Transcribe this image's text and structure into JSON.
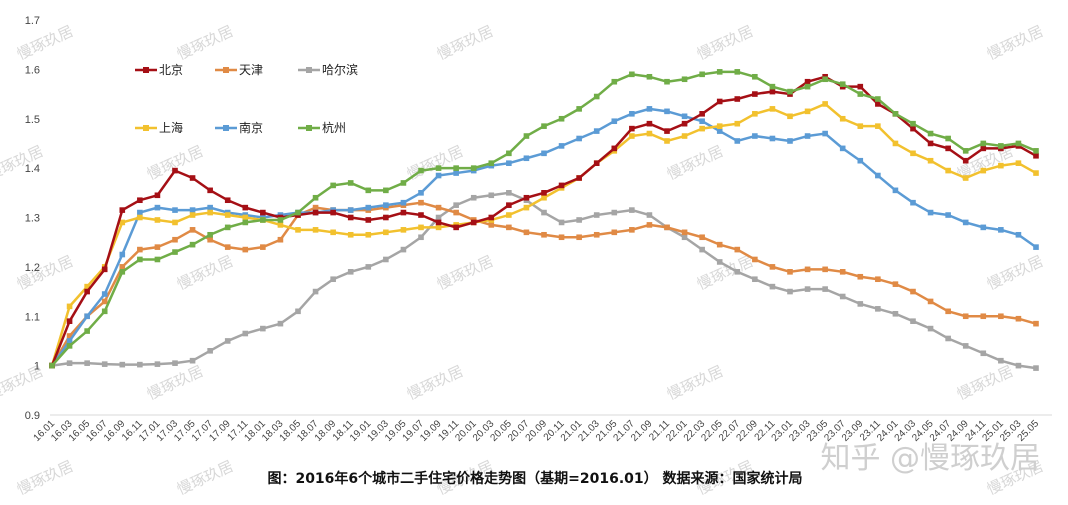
{
  "chart_data": {
    "type": "line",
    "title": "",
    "caption": "图：2016年6个城市二手住宅价格走势图（基期=2016.01） 数据来源：国家统计局",
    "xlabel": "",
    "ylabel": "",
    "ylim": [
      0.9,
      1.7
    ],
    "yticks": [
      "1.7",
      "1.6",
      "1.5",
      "1.4",
      "1.3",
      "1.2",
      "1.1",
      "1",
      "0.9"
    ],
    "grid": false,
    "legend_position": "top-left",
    "x": [
      "16.01",
      "16.03",
      "16.05",
      "16.07",
      "16.09",
      "16.11",
      "17.01",
      "17.03",
      "17.05",
      "17.07",
      "17.09",
      "17.11",
      "18.01",
      "18.03",
      "18.05",
      "18.07",
      "18.09",
      "18.11",
      "19.01",
      "19.03",
      "19.05",
      "19.07",
      "19.09",
      "19.11",
      "20.01",
      "20.03",
      "20.05",
      "20.07",
      "20.09",
      "20.11",
      "21.01",
      "21.03",
      "21.05",
      "21.07",
      "21.09",
      "21.11",
      "22.01",
      "22.03",
      "22.05",
      "22.07",
      "22.09",
      "22.11",
      "23.01",
      "23.03",
      "23.05",
      "23.07",
      "23.09",
      "23.11",
      "24.01",
      "24.03",
      "24.05",
      "24.07",
      "24.09",
      "24.11",
      "25.01",
      "25.03",
      "25.05"
    ],
    "series": [
      {
        "name": "北京",
        "color": "#a50f15",
        "values": [
          1.0,
          1.09,
          1.15,
          1.195,
          1.315,
          1.335,
          1.345,
          1.395,
          1.38,
          1.355,
          1.335,
          1.32,
          1.31,
          1.3,
          1.305,
          1.31,
          1.31,
          1.3,
          1.295,
          1.3,
          1.31,
          1.305,
          1.29,
          1.28,
          1.29,
          1.3,
          1.325,
          1.34,
          1.35,
          1.365,
          1.38,
          1.41,
          1.44,
          1.48,
          1.49,
          1.475,
          1.49,
          1.51,
          1.535,
          1.54,
          1.55,
          1.555,
          1.55,
          1.575,
          1.585,
          1.565,
          1.565,
          1.53,
          1.51,
          1.48,
          1.45,
          1.44,
          1.415,
          1.44,
          1.44,
          1.445,
          1.425
        ]
      },
      {
        "name": "天津",
        "color": "#e08a45",
        "values": [
          1.0,
          1.06,
          1.1,
          1.13,
          1.2,
          1.235,
          1.24,
          1.255,
          1.275,
          1.255,
          1.24,
          1.235,
          1.24,
          1.255,
          1.305,
          1.32,
          1.315,
          1.315,
          1.315,
          1.32,
          1.325,
          1.33,
          1.32,
          1.31,
          1.295,
          1.285,
          1.28,
          1.27,
          1.265,
          1.26,
          1.26,
          1.265,
          1.27,
          1.275,
          1.285,
          1.28,
          1.27,
          1.26,
          1.245,
          1.235,
          1.215,
          1.2,
          1.19,
          1.195,
          1.195,
          1.19,
          1.18,
          1.175,
          1.165,
          1.15,
          1.13,
          1.11,
          1.1,
          1.1,
          1.1,
          1.095,
          1.085
        ]
      },
      {
        "name": "哈尔滨",
        "color": "#a5a5a5",
        "values": [
          1.0,
          1.005,
          1.005,
          1.003,
          1.002,
          1.002,
          1.003,
          1.005,
          1.01,
          1.03,
          1.05,
          1.065,
          1.075,
          1.085,
          1.11,
          1.15,
          1.175,
          1.19,
          1.2,
          1.215,
          1.235,
          1.26,
          1.3,
          1.325,
          1.34,
          1.345,
          1.35,
          1.335,
          1.31,
          1.29,
          1.295,
          1.305,
          1.31,
          1.315,
          1.305,
          1.28,
          1.26,
          1.235,
          1.21,
          1.19,
          1.175,
          1.16,
          1.15,
          1.155,
          1.155,
          1.14,
          1.125,
          1.115,
          1.105,
          1.09,
          1.075,
          1.055,
          1.04,
          1.025,
          1.01,
          1.0,
          0.995
        ]
      },
      {
        "name": "上海",
        "color": "#f2c12e",
        "values": [
          1.0,
          1.12,
          1.16,
          1.2,
          1.29,
          1.3,
          1.295,
          1.29,
          1.305,
          1.31,
          1.305,
          1.3,
          1.295,
          1.285,
          1.275,
          1.275,
          1.27,
          1.265,
          1.265,
          1.27,
          1.275,
          1.28,
          1.28,
          1.285,
          1.29,
          1.295,
          1.305,
          1.32,
          1.34,
          1.36,
          1.38,
          1.41,
          1.435,
          1.465,
          1.47,
          1.455,
          1.465,
          1.48,
          1.485,
          1.49,
          1.51,
          1.52,
          1.505,
          1.515,
          1.53,
          1.5,
          1.485,
          1.485,
          1.45,
          1.43,
          1.415,
          1.395,
          1.38,
          1.395,
          1.405,
          1.41,
          1.39
        ]
      },
      {
        "name": "南京",
        "color": "#5b9bd5",
        "values": [
          1.0,
          1.05,
          1.1,
          1.145,
          1.225,
          1.31,
          1.32,
          1.315,
          1.315,
          1.32,
          1.31,
          1.305,
          1.3,
          1.305,
          1.31,
          1.31,
          1.315,
          1.315,
          1.32,
          1.325,
          1.33,
          1.35,
          1.385,
          1.39,
          1.395,
          1.405,
          1.41,
          1.42,
          1.43,
          1.445,
          1.46,
          1.475,
          1.495,
          1.51,
          1.52,
          1.515,
          1.505,
          1.495,
          1.475,
          1.455,
          1.465,
          1.46,
          1.455,
          1.465,
          1.47,
          1.44,
          1.415,
          1.385,
          1.355,
          1.33,
          1.31,
          1.305,
          1.29,
          1.28,
          1.275,
          1.265,
          1.24
        ]
      },
      {
        "name": "杭州",
        "color": "#70ad47",
        "values": [
          1.0,
          1.04,
          1.07,
          1.11,
          1.19,
          1.215,
          1.215,
          1.23,
          1.245,
          1.265,
          1.28,
          1.29,
          1.295,
          1.295,
          1.31,
          1.34,
          1.365,
          1.37,
          1.355,
          1.355,
          1.37,
          1.395,
          1.4,
          1.4,
          1.4,
          1.41,
          1.43,
          1.465,
          1.485,
          1.5,
          1.52,
          1.545,
          1.575,
          1.59,
          1.585,
          1.575,
          1.58,
          1.59,
          1.595,
          1.595,
          1.585,
          1.565,
          1.555,
          1.565,
          1.58,
          1.57,
          1.55,
          1.54,
          1.51,
          1.49,
          1.47,
          1.46,
          1.435,
          1.45,
          1.445,
          1.45,
          1.435
        ]
      }
    ]
  },
  "watermark": {
    "text": "慢琢玖居",
    "brand": "知乎 @慢琢玖居"
  }
}
